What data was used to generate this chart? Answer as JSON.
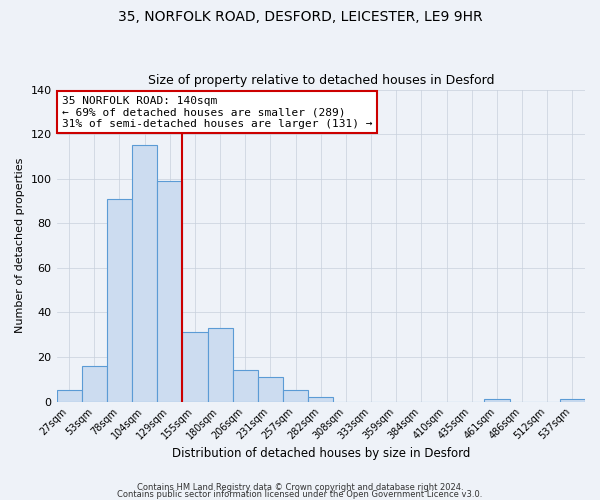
{
  "title": "35, NORFOLK ROAD, DESFORD, LEICESTER, LE9 9HR",
  "subtitle": "Size of property relative to detached houses in Desford",
  "xlabel": "Distribution of detached houses by size in Desford",
  "ylabel": "Number of detached properties",
  "bar_labels": [
    "27sqm",
    "53sqm",
    "78sqm",
    "104sqm",
    "129sqm",
    "155sqm",
    "180sqm",
    "206sqm",
    "231sqm",
    "257sqm",
    "282sqm",
    "308sqm",
    "333sqm",
    "359sqm",
    "384sqm",
    "410sqm",
    "435sqm",
    "461sqm",
    "486sqm",
    "512sqm",
    "537sqm"
  ],
  "bar_values": [
    5,
    16,
    91,
    115,
    99,
    31,
    33,
    14,
    11,
    5,
    2,
    0,
    0,
    0,
    0,
    0,
    0,
    1,
    0,
    0,
    1
  ],
  "bar_color": "#ccdcf0",
  "bar_edge_color": "#5b9bd5",
  "grid_color": "#c8d0dc",
  "vline_x": 4.5,
  "vline_color": "#cc0000",
  "annotation_line1": "35 NORFOLK ROAD: 140sqm",
  "annotation_line2": "← 69% of detached houses are smaller (289)",
  "annotation_line3": "31% of semi-detached houses are larger (131) →",
  "annotation_box_edge": "#cc0000",
  "ylim": [
    0,
    140
  ],
  "yticks": [
    0,
    20,
    40,
    60,
    80,
    100,
    120,
    140
  ],
  "footer1": "Contains HM Land Registry data © Crown copyright and database right 2024.",
  "footer2": "Contains public sector information licensed under the Open Government Licence v3.0.",
  "background_color": "#eef2f8",
  "plot_bg_color": "#eef2f8"
}
